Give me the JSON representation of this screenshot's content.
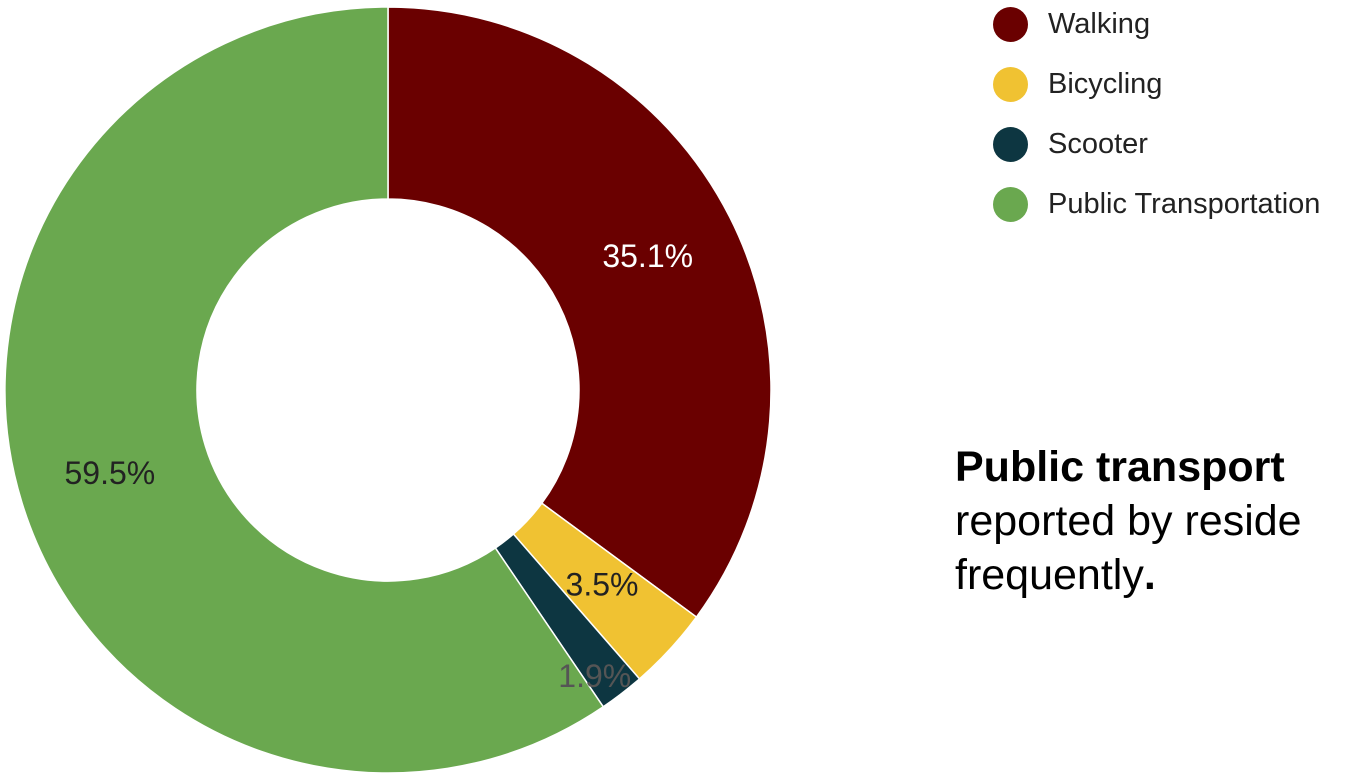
{
  "chart_data": {
    "type": "pie",
    "style": "donut",
    "categories": [
      "Walking",
      "Bicycling",
      "Scooter",
      "Public Transportation"
    ],
    "values": [
      35.1,
      3.5,
      1.9,
      59.5
    ],
    "labels": [
      "35.1%",
      "3.5%",
      "1.9%",
      "59.5%"
    ],
    "colors": [
      "#6a0000",
      "#f0c232",
      "#0d3641",
      "#6aa84f"
    ],
    "label_colors": [
      "#ffffff",
      "#222222",
      "#555555",
      "#222222"
    ],
    "legend_position": "right"
  },
  "legend": {
    "items": [
      {
        "label": "Walking",
        "color": "#6a0000"
      },
      {
        "label": "Bicycling",
        "color": "#f0c232"
      },
      {
        "label": "Scooter",
        "color": "#0d3641"
      },
      {
        "label": "Public Transportation",
        "color": "#6aa84f"
      }
    ]
  },
  "caption": {
    "bold": "Public transport",
    "line2": "reported by reside",
    "line3": "frequently",
    "period": "."
  }
}
